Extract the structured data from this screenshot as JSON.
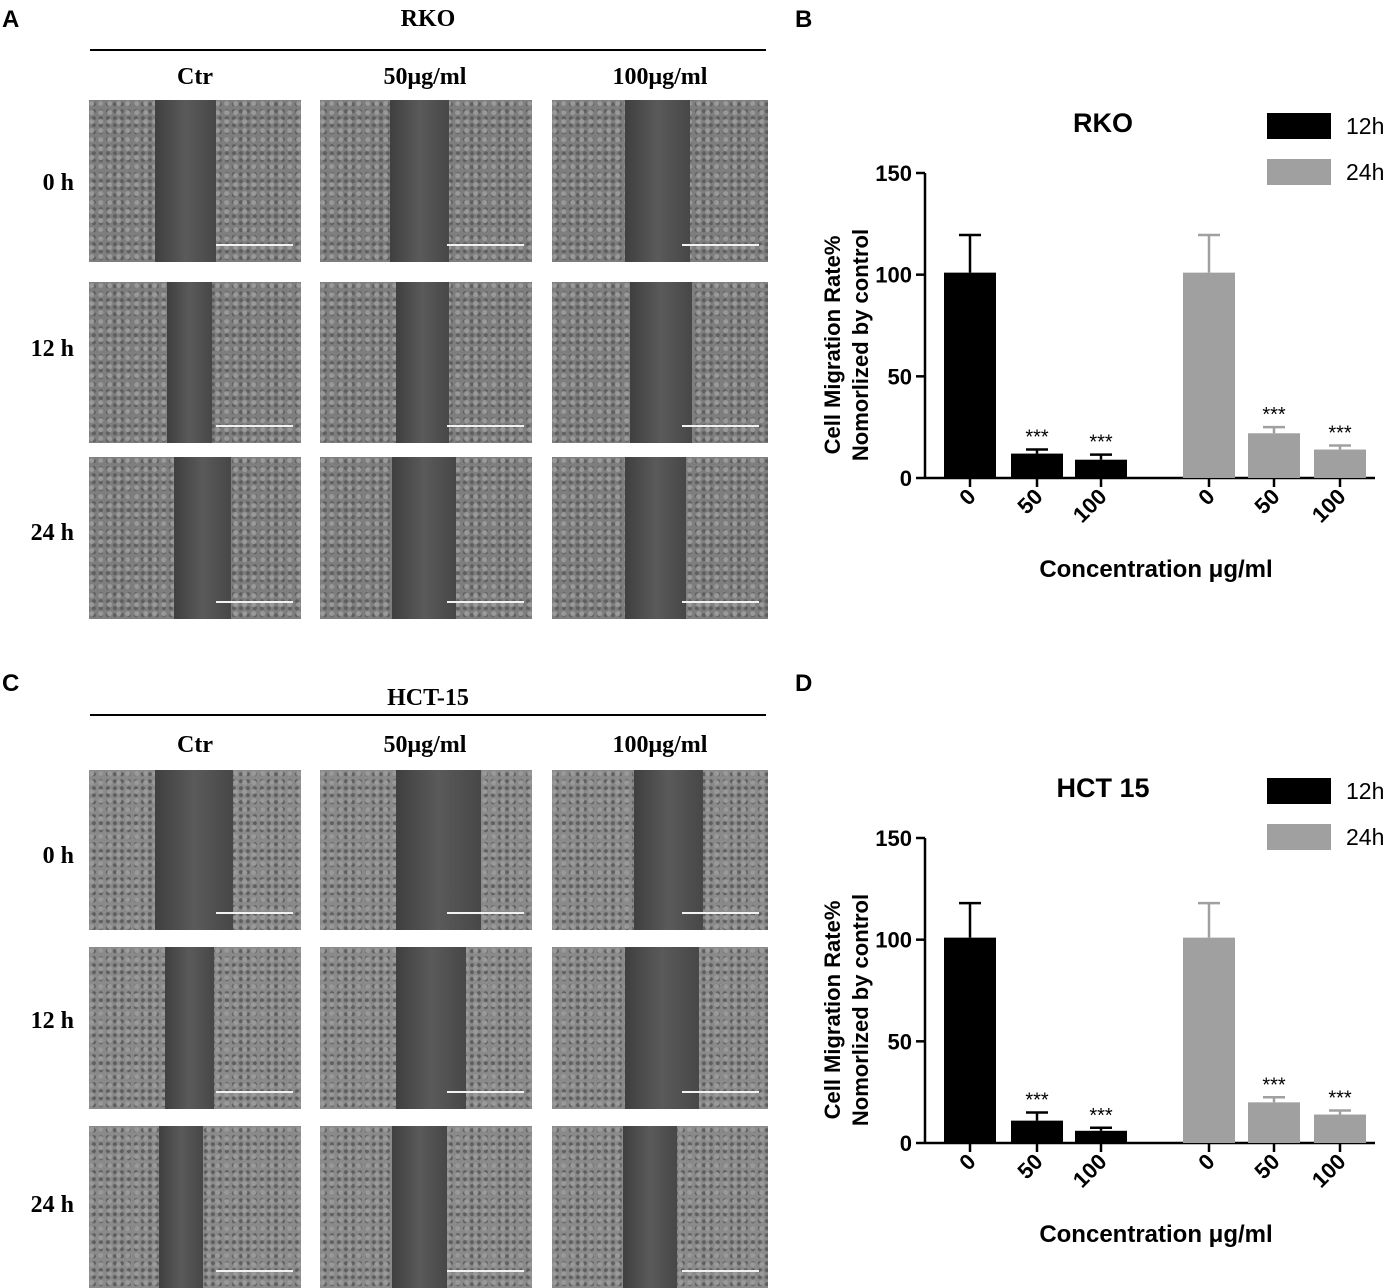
{
  "panels": {
    "a": {
      "letter": "A",
      "title": "RKO",
      "columns": [
        "Ctr",
        "50μg/ml",
        "100μg/ml"
      ],
      "rows": [
        "0 h",
        "12 h",
        "24 h"
      ]
    },
    "b": {
      "letter": "B"
    },
    "c": {
      "letter": "C",
      "title": "HCT-15",
      "columns": [
        "Ctr",
        "50μg/ml",
        "100μg/ml"
      ],
      "rows": [
        "0 h",
        "12 h",
        "24 h"
      ]
    },
    "d": {
      "letter": "D"
    }
  },
  "colors": {
    "h12": "#000000",
    "h24": "#a0a0a0",
    "rko_cells": "#7e7e7e",
    "hct_cells": "#8a8a8a",
    "gap": "#4a4a4a"
  },
  "chart_data": [
    {
      "type": "bar",
      "title": "RKO",
      "xlabel": "Concentration μg/ml",
      "ylabel": "Cell Migration Rate% Nomorlized by control",
      "ylabel_lines": [
        "Cell Migration Rate%",
        "Nomorlized by control"
      ],
      "ylim": [
        0,
        150
      ],
      "yticks": [
        0,
        50,
        100,
        150
      ],
      "legend_position": "top-right",
      "groups": [
        {
          "name": "12h",
          "categories": [
            "0",
            "50",
            "100"
          ],
          "values": [
            101,
            12,
            9
          ],
          "errors": [
            18.5,
            2,
            2.5
          ],
          "annotations": [
            "",
            "***",
            "***"
          ]
        },
        {
          "name": "24h",
          "categories": [
            "0",
            "50",
            "100"
          ],
          "values": [
            101,
            22,
            14
          ],
          "errors": [
            18.5,
            3,
            2
          ],
          "annotations": [
            "",
            "***",
            "***"
          ]
        }
      ]
    },
    {
      "type": "bar",
      "title": "HCT 15",
      "xlabel": "Concentration μg/ml",
      "ylabel": "Cell Migration Rate% Nomorlized by control",
      "ylabel_lines": [
        "Cell Migration Rate%",
        "Nomorlized by control"
      ],
      "ylim": [
        0,
        150
      ],
      "yticks": [
        0,
        50,
        100,
        150
      ],
      "legend_position": "top-right",
      "groups": [
        {
          "name": "12h",
          "categories": [
            "0",
            "50",
            "100"
          ],
          "values": [
            101,
            11,
            6
          ],
          "errors": [
            17,
            4,
            1.5
          ],
          "annotations": [
            "",
            "***",
            "***"
          ]
        },
        {
          "name": "24h",
          "categories": [
            "0",
            "50",
            "100"
          ],
          "values": [
            101,
            20,
            14
          ],
          "errors": [
            17,
            2.5,
            2
          ],
          "annotations": [
            "",
            "***",
            "***"
          ]
        }
      ]
    }
  ]
}
